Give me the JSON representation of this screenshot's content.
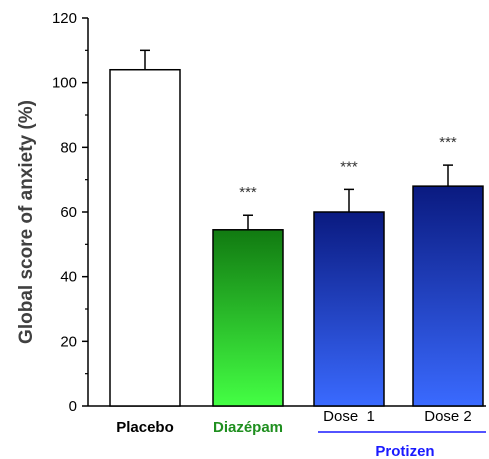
{
  "chart_data": {
    "type": "bar",
    "categories": [
      "Placebo",
      "Diazépam",
      "Dose  1",
      "Dose 2"
    ],
    "values": [
      104,
      54.5,
      60,
      68
    ],
    "errors": [
      6,
      4.5,
      7,
      6.5
    ],
    "significance": [
      "",
      "***",
      "***",
      "***"
    ],
    "category_colors": [
      "#000000",
      "#1f8f1f",
      "#000000",
      "#000000"
    ],
    "group_label": "Protizen",
    "group_label_color": "#1a1aff",
    "ylabel": "Global score of anxiety (%)",
    "ylim": [
      0,
      120
    ],
    "yticks": [
      0,
      20,
      40,
      60,
      80,
      100,
      120
    ],
    "grid": false,
    "bar_styles": [
      {
        "fill": "#ffffff",
        "gradient": null
      },
      {
        "fill": null,
        "gradient": [
          "#117a11",
          "#44ff44"
        ]
      },
      {
        "fill": null,
        "gradient": [
          "#0a1a80",
          "#3a6aff"
        ]
      },
      {
        "fill": null,
        "gradient": [
          "#0a1a80",
          "#3a6aff"
        ]
      }
    ]
  }
}
